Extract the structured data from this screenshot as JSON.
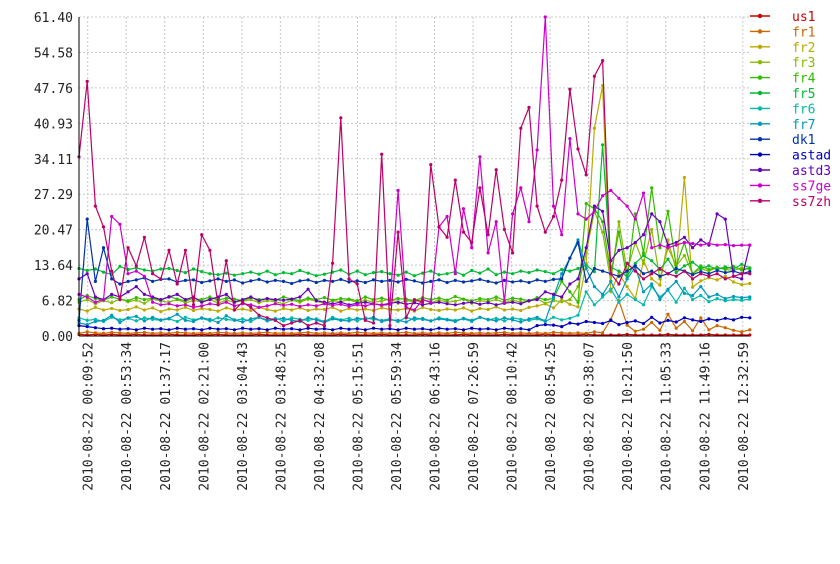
{
  "chart_data": {
    "type": "line",
    "title": "",
    "xlabel": "",
    "ylabel": "",
    "ylim": [
      0,
      61.4
    ],
    "y_ticks": [
      "0.00",
      "6.82",
      "13.64",
      "20.47",
      "27.29",
      "34.11",
      "40.93",
      "47.76",
      "54.58",
      "61.40"
    ],
    "x_ticks": [
      "2010-08-22 00:09:52",
      "2010-08-22 00:53:34",
      "2010-08-22 01:37:17",
      "2010-08-22 02:21:00",
      "2010-08-22 03:04:43",
      "2010-08-22 03:48:25",
      "2010-08-22 04:32:08",
      "2010-08-22 05:15:51",
      "2010-08-22 05:59:34",
      "2010-08-22 06:43:16",
      "2010-08-22 07:26:59",
      "2010-08-22 08:10:42",
      "2010-08-22 08:54:25",
      "2010-08-22 09:38:07",
      "2010-08-22 10:21:50",
      "2010-08-22 11:05:33",
      "2010-08-22 11:49:16",
      "2010-08-22 12:32:59"
    ],
    "grid": true,
    "legend_position": "right",
    "x_start": "2010-08-22 00:00:00",
    "x_end": "2010-08-22 12:40:00",
    "sample_interval_minutes": 9.28,
    "series": [
      {
        "name": "us1",
        "color": "#cc0000",
        "values": [
          0.3,
          0.2,
          0.3,
          0.2,
          0.3,
          0.2,
          0.2,
          0.3,
          0.2,
          0.2,
          0.2,
          0.3,
          0.2,
          0.2,
          0.2,
          0.3,
          0.2,
          0.3,
          0.2,
          0.2,
          0.2,
          0.2,
          0.3,
          0.2,
          0.2,
          0.2,
          0.2,
          0.3,
          0.2,
          0.2,
          0.2,
          0.2,
          0.3,
          0.2,
          0.2,
          0.2,
          0.2,
          0.3,
          0.2,
          0.2,
          0.2,
          0.2,
          0.3,
          0.2,
          0.2,
          0.2,
          0.2,
          0.3,
          0.2,
          0.2,
          0.2,
          0.2,
          0.3,
          0.2,
          0.2,
          0.2,
          0.2,
          0.3,
          0.2,
          0.2,
          0.2,
          0.2,
          0.3,
          0.2,
          0.2,
          0.2,
          0.2,
          0.3,
          0.2,
          0.2,
          0.2,
          0.2,
          0.3,
          0.2,
          0.2,
          0.2,
          0.2,
          0.3,
          0.2,
          0.2,
          0.2,
          0.2,
          0.2
        ]
      },
      {
        "name": "fr1",
        "color": "#cc6600",
        "values": [
          0.5,
          0.8,
          0.6,
          0.5,
          0.7,
          0.6,
          0.5,
          0.6,
          0.7,
          0.5,
          0.6,
          0.5,
          0.7,
          0.6,
          0.5,
          0.6,
          0.5,
          0.7,
          0.6,
          0.5,
          0.6,
          0.5,
          0.6,
          0.7,
          0.5,
          0.6,
          0.5,
          0.6,
          0.7,
          0.5,
          0.6,
          0.5,
          0.6,
          0.5,
          0.7,
          0.6,
          0.5,
          0.6,
          0.5,
          0.6,
          0.7,
          0.5,
          0.6,
          0.5,
          0.6,
          0.5,
          0.7,
          0.6,
          0.5,
          0.6,
          0.5,
          0.6,
          0.7,
          0.5,
          0.6,
          0.5,
          0.6,
          0.5,
          0.7,
          0.6,
          0.5,
          0.6,
          0.5,
          0.8,
          0.6,
          3.2,
          6.8,
          2.1,
          0.9,
          1.3,
          2.6,
          1.1,
          4.2,
          1.5,
          2.8,
          1.0,
          3.5,
          1.2,
          2.0,
          1.6,
          1.1,
          0.8,
          1.2
        ]
      },
      {
        "name": "fr2",
        "color": "#bbaa00",
        "values": [
          5.2,
          4.8,
          5.5,
          5.0,
          5.3,
          4.9,
          5.1,
          5.6,
          5.0,
          5.4,
          4.7,
          5.2,
          5.0,
          5.5,
          4.9,
          5.3,
          5.1,
          4.8,
          5.4,
          5.0,
          5.2,
          4.9,
          5.5,
          5.1,
          4.8,
          5.3,
          5.0,
          5.4,
          4.9,
          5.2,
          5.1,
          5.5,
          4.8,
          5.3,
          5.0,
          5.2,
          4.9,
          5.4,
          5.1,
          5.0,
          5.3,
          4.8,
          5.5,
          5.1,
          4.9,
          5.2,
          5.0,
          5.4,
          4.8,
          5.3,
          5.1,
          5.6,
          5.0,
          5.2,
          4.9,
          5.5,
          5.8,
          6.2,
          5.4,
          7.0,
          6.1,
          5.6,
          14.0,
          40.0,
          48.2,
          8.5,
          12.0,
          9.5,
          7.2,
          14.5,
          11.0,
          9.8,
          18.5,
          12.6,
          30.5,
          9.4,
          10.6,
          11.2,
          10.8,
          11.5,
          10.4,
          9.9,
          10.1
        ]
      },
      {
        "name": "fr3",
        "color": "#88bb00",
        "values": [
          6.5,
          7.0,
          6.2,
          6.8,
          6.4,
          7.1,
          6.6,
          6.9,
          6.3,
          7.2,
          6.7,
          6.5,
          7.0,
          6.4,
          6.8,
          6.6,
          7.1,
          6.3,
          6.9,
          6.5,
          6.7,
          7.0,
          6.4,
          6.8,
          6.6,
          6.2,
          6.9,
          6.5,
          7.1,
          6.7,
          6.3,
          6.8,
          6.6,
          7.0,
          6.4,
          6.9,
          6.5,
          6.7,
          7.2,
          6.3,
          6.8,
          6.6,
          7.0,
          6.4,
          6.9,
          6.5,
          6.7,
          7.1,
          6.3,
          6.8,
          6.6,
          7.0,
          6.4,
          6.9,
          6.5,
          6.7,
          7.2,
          6.3,
          6.8,
          6.6,
          7.0,
          9.5,
          16.0,
          24.0,
          20.0,
          10.5,
          22.0,
          12.5,
          18.0,
          14.0,
          20.5,
          11.0,
          17.0,
          13.5,
          15.5,
          12.0,
          13.0,
          12.5,
          13.2,
          12.8,
          12.6,
          13.1,
          12.9
        ]
      },
      {
        "name": "fr4",
        "color": "#33bb00",
        "values": [
          7.0,
          7.8,
          7.2,
          6.9,
          7.5,
          7.1,
          6.8,
          7.4,
          7.0,
          7.3,
          6.9,
          7.6,
          7.1,
          6.8,
          7.2,
          7.0,
          7.5,
          6.9,
          7.3,
          7.1,
          6.8,
          7.4,
          7.0,
          7.2,
          6.9,
          7.5,
          7.1,
          6.8,
          7.3,
          7.0,
          7.4,
          6.9,
          7.2,
          7.1,
          6.8,
          7.5,
          7.0,
          7.3,
          6.9,
          7.2,
          7.1,
          6.8,
          7.4,
          7.0,
          7.3,
          6.9,
          7.6,
          7.1,
          6.8,
          7.2,
          7.0,
          7.5,
          6.9,
          7.3,
          7.1,
          6.8,
          7.4,
          7.0,
          7.2,
          10.5,
          8.5,
          6.5,
          25.5,
          24.5,
          22.0,
          12.0,
          20.0,
          11.0,
          23.5,
          16.0,
          28.5,
          17.0,
          24.0,
          13.5,
          18.0,
          12.0,
          13.5,
          12.8,
          13.2,
          12.9,
          13.4,
          12.7,
          13.0
        ]
      },
      {
        "name": "fr5",
        "color": "#00bb33",
        "values": [
          13.0,
          12.6,
          12.9,
          12.3,
          11.8,
          13.4,
          12.8,
          13.1,
          12.7,
          12.5,
          12.9,
          13.0,
          12.6,
          12.2,
          12.9,
          12.4,
          12.0,
          11.8,
          12.1,
          11.7,
          12.0,
          12.3,
          11.9,
          12.5,
          11.8,
          12.2,
          12.0,
          12.6,
          12.1,
          11.6,
          11.9,
          12.3,
          12.7,
          11.9,
          12.5,
          11.8,
          12.2,
          12.4,
          12.0,
          11.7,
          12.3,
          11.6,
          12.1,
          12.5,
          11.8,
          12.0,
          12.4,
          11.7,
          12.6,
          12.1,
          12.9,
          11.8,
          12.3,
          12.0,
          12.5,
          12.2,
          12.7,
          12.4,
          12.0,
          12.8,
          12.5,
          13.0,
          13.6,
          12.4,
          36.8,
          13.2,
          12.5,
          11.5,
          14.0,
          15.5,
          14.5,
          12.8,
          14.8,
          12.2,
          13.5,
          14.2,
          13.0,
          13.5,
          12.8,
          13.3,
          12.9,
          13.8,
          13.1
        ]
      },
      {
        "name": "fr6",
        "color": "#00bbaa",
        "values": [
          3.5,
          3.0,
          3.2,
          2.8,
          3.6,
          3.1,
          3.4,
          2.9,
          3.5,
          3.2,
          3.0,
          3.3,
          2.8,
          3.6,
          3.1,
          3.4,
          2.9,
          3.5,
          3.2,
          3.0,
          3.3,
          2.8,
          3.6,
          3.1,
          3.4,
          2.9,
          3.5,
          3.2,
          3.0,
          3.3,
          2.8,
          3.6,
          3.1,
          3.4,
          2.9,
          3.5,
          3.2,
          3.0,
          3.3,
          2.8,
          3.6,
          3.1,
          3.4,
          2.9,
          3.5,
          3.2,
          3.0,
          3.3,
          2.8,
          3.6,
          3.1,
          3.4,
          2.9,
          3.5,
          3.2,
          3.0,
          3.3,
          2.8,
          3.6,
          3.1,
          3.4,
          4.0,
          8.5,
          6.0,
          7.5,
          9.0,
          6.5,
          8.0,
          7.0,
          6.0,
          9.5,
          7.5,
          8.8,
          6.5,
          9.2,
          7.0,
          7.8,
          6.6,
          7.2,
          6.8,
          7.0,
          6.9,
          7.1
        ]
      },
      {
        "name": "fr7",
        "color": "#0099bb",
        "values": [
          2.5,
          2.2,
          2.8,
          3.0,
          4.0,
          2.6,
          3.5,
          3.8,
          2.9,
          3.6,
          3.1,
          3.4,
          4.2,
          3.0,
          2.8,
          3.5,
          3.2,
          2.6,
          3.9,
          3.1,
          2.7,
          3.3,
          3.6,
          2.9,
          3.2,
          3.4,
          3.0,
          2.8,
          3.5,
          3.1,
          2.6,
          3.3,
          3.0,
          2.9,
          3.4,
          3.2,
          3.6,
          2.8,
          3.1,
          3.0,
          2.7,
          3.5,
          3.2,
          2.9,
          3.3,
          3.1,
          2.8,
          3.4,
          3.0,
          3.6,
          3.2,
          2.9,
          3.5,
          3.1,
          2.7,
          3.3,
          3.6,
          2.9,
          7.5,
          12.0,
          15.0,
          18.5,
          13.0,
          9.5,
          8.0,
          10.5,
          7.5,
          11.0,
          13.2,
          8.5,
          10.0,
          7.0,
          9.0,
          10.5,
          8.2,
          7.8,
          9.5,
          7.5,
          8.0,
          7.2,
          7.6,
          7.4,
          7.5
        ]
      },
      {
        "name": "dk1",
        "color": "#0033aa",
        "values": [
          3.0,
          22.5,
          10.5,
          17.0,
          11.0,
          10.0,
          10.5,
          10.8,
          11.2,
          10.5,
          10.9,
          11.0,
          10.4,
          10.7,
          10.8,
          10.3,
          10.6,
          11.0,
          10.5,
          10.8,
          10.2,
          10.6,
          10.9,
          10.4,
          10.7,
          10.5,
          10.1,
          10.6,
          10.8,
          10.3,
          10.7,
          10.5,
          10.9,
          10.4,
          10.6,
          10.3,
          10.8,
          10.5,
          10.7,
          10.4,
          10.9,
          10.6,
          10.2,
          10.5,
          10.8,
          10.3,
          10.7,
          10.4,
          10.6,
          10.9,
          10.5,
          10.2,
          10.7,
          10.4,
          10.6,
          10.3,
          10.8,
          10.5,
          10.9,
          11.0,
          15.0,
          18.0,
          10.5,
          13.0,
          12.5,
          12.0,
          11.5,
          12.5,
          13.5,
          12.0,
          12.5,
          11.5,
          12.0,
          13.0,
          12.5,
          11.8,
          12.4,
          12.0,
          12.6,
          12.2,
          12.5,
          12.0,
          12.4
        ]
      },
      {
        "name": "astad",
        "color": "#0000bb",
        "values": [
          2.0,
          1.8,
          1.6,
          1.4,
          1.5,
          1.3,
          1.4,
          1.2,
          1.5,
          1.3,
          1.4,
          1.2,
          1.5,
          1.3,
          1.4,
          1.2,
          1.5,
          1.3,
          1.4,
          1.2,
          1.5,
          1.3,
          1.4,
          1.2,
          1.5,
          1.3,
          1.4,
          1.2,
          1.5,
          1.3,
          1.4,
          1.2,
          1.5,
          1.3,
          1.4,
          1.2,
          1.5,
          1.3,
          1.4,
          1.2,
          1.5,
          1.3,
          1.4,
          1.2,
          1.5,
          1.3,
          1.4,
          1.2,
          1.5,
          1.3,
          1.4,
          1.2,
          1.5,
          1.3,
          1.4,
          1.2,
          2.0,
          2.2,
          2.1,
          1.8,
          2.5,
          2.3,
          2.8,
          2.6,
          2.4,
          3.0,
          2.2,
          2.6,
          2.9,
          2.4,
          3.6,
          2.5,
          3.0,
          2.7,
          3.5,
          3.1,
          2.8,
          3.3,
          3.0,
          3.4,
          3.1,
          3.6,
          3.5
        ]
      },
      {
        "name": "astd3",
        "color": "#6600bb",
        "values": [
          11.0,
          12.0,
          7.5,
          7.0,
          8.0,
          7.5,
          8.5,
          9.5,
          8.0,
          7.5,
          7.0,
          7.5,
          8.0,
          7.0,
          7.5,
          6.5,
          7.0,
          7.5,
          8.0,
          6.5,
          7.0,
          7.5,
          6.8,
          7.2,
          7.0,
          6.9,
          7.1,
          7.5,
          9.0,
          6.8,
          6.5,
          6.2,
          6.5,
          6.0,
          6.3,
          6.5,
          6.2,
          6.0,
          6.3,
          6.5,
          6.1,
          6.4,
          6.0,
          6.3,
          6.5,
          6.2,
          6.0,
          6.3,
          6.5,
          6.1,
          6.4,
          6.0,
          6.3,
          6.5,
          6.2,
          6.8,
          7.0,
          8.5,
          8.0,
          7.5,
          10.0,
          11.0,
          17.0,
          25.0,
          24.0,
          14.5,
          16.5,
          17.0,
          18.0,
          19.5,
          23.5,
          22.0,
          17.5,
          18.0,
          19.0,
          17.0,
          18.5,
          17.5,
          23.5,
          22.5,
          11.5,
          11.0,
          17.5
        ]
      },
      {
        "name": "ss7ge",
        "color": "#cc00cc",
        "values": [
          8.0,
          7.5,
          6.5,
          7.0,
          23.0,
          21.5,
          12.0,
          12.5,
          11.5,
          6.5,
          6.0,
          6.2,
          5.8,
          6.0,
          5.5,
          5.8,
          6.2,
          6.0,
          6.5,
          5.8,
          6.2,
          6.0,
          5.5,
          5.8,
          6.2,
          5.9,
          6.1,
          5.7,
          6.0,
          5.8,
          6.2,
          5.9,
          6.1,
          5.7,
          6.0,
          5.8,
          6.2,
          5.9,
          6.1,
          28.0,
          5.5,
          5.0,
          7.0,
          6.5,
          21.0,
          23.0,
          12.0,
          24.5,
          17.0,
          34.5,
          16.0,
          22.0,
          6.5,
          23.5,
          28.5,
          22.0,
          35.8,
          61.4,
          25.0,
          19.5,
          38.0,
          23.5,
          22.5,
          24.0,
          27.0,
          28.0,
          26.5,
          25.0,
          22.5,
          27.5,
          17.0,
          17.5,
          17.0,
          17.5,
          18.0,
          17.8,
          17.5,
          17.8,
          17.5,
          17.6,
          17.4,
          17.5,
          17.5
        ]
      },
      {
        "name": "ss7zh",
        "color": "#bb0066",
        "values": [
          34.5,
          49.0,
          25.0,
          21.0,
          12.5,
          7.0,
          17.0,
          13.5,
          19.0,
          12.0,
          11.0,
          16.5,
          10.0,
          16.5,
          6.0,
          19.5,
          16.5,
          6.0,
          14.5,
          5.0,
          6.5,
          5.5,
          4.0,
          3.5,
          3.0,
          2.0,
          2.5,
          3.0,
          2.0,
          2.5,
          2.0,
          14.0,
          42.0,
          11.0,
          10.0,
          3.0,
          2.5,
          35.0,
          2.0,
          20.0,
          3.5,
          7.0,
          6.5,
          33.0,
          21.0,
          19.0,
          30.0,
          20.0,
          18.0,
          28.5,
          19.5,
          32.0,
          20.5,
          16.0,
          40.0,
          44.0,
          25.0,
          20.0,
          23.0,
          30.0,
          47.5,
          36.0,
          31.0,
          50.0,
          53.0,
          12.0,
          10.0,
          14.0,
          12.5,
          11.0,
          12.0,
          13.0,
          12.0,
          11.5,
          12.5,
          11.0,
          12.0,
          11.5,
          12.0,
          11.0,
          11.5,
          12.0,
          12.0
        ]
      }
    ]
  }
}
